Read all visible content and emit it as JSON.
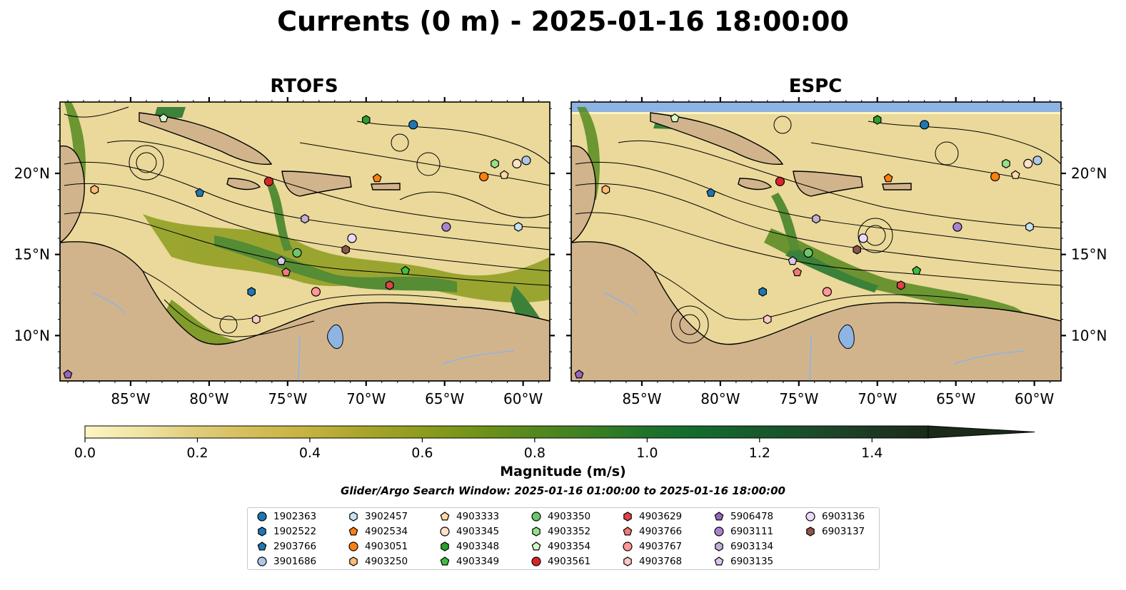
{
  "title": "Currents (0 m) - 2025-01-16 18:00:00",
  "panels": [
    {
      "id": "rtofs",
      "title": "RTOFS"
    },
    {
      "id": "espc",
      "title": "ESPC"
    }
  ],
  "axes": {
    "lon_ticks": [
      "85°W",
      "80°W",
      "75°W",
      "70°W",
      "65°W",
      "60°W"
    ],
    "lat_ticks": [
      "20°N",
      "15°N",
      "10°N"
    ],
    "lon_range": [
      -89.5,
      -58.3
    ],
    "lat_range": [
      7.2,
      24.4
    ]
  },
  "colorbar": {
    "label": "Magnitude (m/s)",
    "ticks": [
      "0.0",
      "0.2",
      "0.4",
      "0.6",
      "0.8",
      "1.0",
      "1.2",
      "1.4"
    ],
    "range": [
      0.0,
      1.5
    ],
    "extend": "max"
  },
  "search_window": "Glider/Argo Search Window: 2025-01-16 01:00:00 to 2025-01-16 18:00:00",
  "colors": {
    "land": "#d2b48c",
    "water_blue": "#8eb4e3",
    "low_speed": "#fdf5c2",
    "high_speed": "#1b2a1a"
  },
  "legend": [
    {
      "id": "1902363",
      "marker": "circle",
      "color": "#1f77b4"
    },
    {
      "id": "1902522",
      "marker": "hexagon",
      "color": "#1f77b4"
    },
    {
      "id": "2903766",
      "marker": "pentagon",
      "color": "#1f77b4"
    },
    {
      "id": "3901686",
      "marker": "circle",
      "color": "#aec7e8"
    },
    {
      "id": "3902457",
      "marker": "hexagon",
      "color": "#c6e3f5"
    },
    {
      "id": "4902534",
      "marker": "pentagon",
      "color": "#ff7f0e"
    },
    {
      "id": "4903051",
      "marker": "circle",
      "color": "#ff7f0e"
    },
    {
      "id": "4903250",
      "marker": "hexagon",
      "color": "#ffbb78"
    },
    {
      "id": "4903333",
      "marker": "pentagon",
      "color": "#ffd8a8"
    },
    {
      "id": "4903345",
      "marker": "circle",
      "color": "#ffe2c6"
    },
    {
      "id": "4903348",
      "marker": "hexagon",
      "color": "#2ca02c"
    },
    {
      "id": "4903349",
      "marker": "pentagon",
      "color": "#3fbf3f"
    },
    {
      "id": "4903350",
      "marker": "circle",
      "color": "#6cc66c"
    },
    {
      "id": "4903352",
      "marker": "hexagon",
      "color": "#98df8a"
    },
    {
      "id": "4903354",
      "marker": "pentagon",
      "color": "#d4f7c8"
    },
    {
      "id": "4903561",
      "marker": "circle",
      "color": "#d62728"
    },
    {
      "id": "4903629",
      "marker": "hexagon",
      "color": "#e0424a"
    },
    {
      "id": "4903766",
      "marker": "pentagon",
      "color": "#f07a7a"
    },
    {
      "id": "4903767",
      "marker": "circle",
      "color": "#ff9896"
    },
    {
      "id": "4903768",
      "marker": "hexagon",
      "color": "#ffc8c8"
    },
    {
      "id": "5906478",
      "marker": "pentagon",
      "color": "#9467bd"
    },
    {
      "id": "6903111",
      "marker": "circle",
      "color": "#a883cf"
    },
    {
      "id": "6903134",
      "marker": "hexagon",
      "color": "#c5b0d5"
    },
    {
      "id": "6903135",
      "marker": "pentagon",
      "color": "#dcc6ee"
    },
    {
      "id": "6903136",
      "marker": "circle",
      "color": "#ecd8fb"
    },
    {
      "id": "6903137",
      "marker": "hexagon",
      "color": "#8c564b"
    }
  ],
  "floats": [
    {
      "id": "1902363",
      "lon": -67.0,
      "lat": 23.0
    },
    {
      "id": "1902522",
      "lon": -77.3,
      "lat": 12.7
    },
    {
      "id": "2903766",
      "lon": -80.6,
      "lat": 18.8
    },
    {
      "id": "3901686",
      "lon": -59.8,
      "lat": 20.8
    },
    {
      "id": "3902457",
      "lon": -60.3,
      "lat": 16.7
    },
    {
      "id": "4902534",
      "lon": -69.3,
      "lat": 19.7
    },
    {
      "id": "4903051",
      "lon": -62.5,
      "lat": 19.8
    },
    {
      "id": "4903250",
      "lon": -87.3,
      "lat": 19.0
    },
    {
      "id": "4903333",
      "lon": -61.2,
      "lat": 19.9
    },
    {
      "id": "4903345",
      "lon": -60.4,
      "lat": 20.6
    },
    {
      "id": "4903348",
      "lon": -70.0,
      "lat": 23.3
    },
    {
      "id": "4903349",
      "lon": -67.5,
      "lat": 14.0
    },
    {
      "id": "4903350",
      "lon": -74.4,
      "lat": 15.1
    },
    {
      "id": "4903352",
      "lon": -61.8,
      "lat": 20.6
    },
    {
      "id": "4903354",
      "lon": -82.9,
      "lat": 23.4
    },
    {
      "id": "4903561",
      "lon": -76.2,
      "lat": 19.5
    },
    {
      "id": "4903629",
      "lon": -68.5,
      "lat": 13.1
    },
    {
      "id": "4903766",
      "lon": -75.1,
      "lat": 13.9
    },
    {
      "id": "4903767",
      "lon": -73.2,
      "lat": 12.7
    },
    {
      "id": "4903768",
      "lon": -77.0,
      "lat": 11.0
    },
    {
      "id": "5906478",
      "lon": -89.0,
      "lat": 7.6
    },
    {
      "id": "6903111",
      "lon": -64.9,
      "lat": 16.7
    },
    {
      "id": "6903134",
      "lon": -73.9,
      "lat": 17.2
    },
    {
      "id": "6903135",
      "lon": -75.4,
      "lat": 14.6
    },
    {
      "id": "6903136",
      "lon": -70.9,
      "lat": 16.0
    },
    {
      "id": "6903137",
      "lon": -71.3,
      "lat": 15.3
    }
  ]
}
